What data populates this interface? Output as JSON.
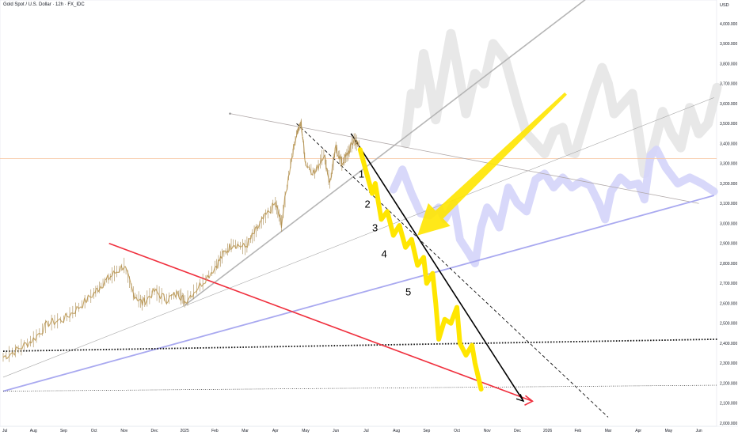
{
  "header": {
    "title": "Gold Spot / U.S. Dollar · 12h · FX_IDC",
    "currency": "USD"
  },
  "colors": {
    "candle": "#c7a768",
    "red_line": "#f0303e",
    "blue_line": "#a9a9f0",
    "gray_line": "#a6a6a6",
    "yellow": "#ffe600",
    "ghost_gray": "#e6e6e6",
    "ghost_blue": "#d4d4fa",
    "black": "#000000"
  },
  "chart_data": {
    "type": "line",
    "ylim": [
      2000,
      4100
    ],
    "y_ticks": [
      {
        "v": 2000,
        "label": "2,000.000"
      },
      {
        "v": 2100,
        "label": "2,100.000"
      },
      {
        "v": 2200,
        "label": "2,200.000"
      },
      {
        "v": 2300,
        "label": "2,300.000"
      },
      {
        "v": 2400,
        "label": "2,400.000"
      },
      {
        "v": 2500,
        "label": "2,500.000"
      },
      {
        "v": 2600,
        "label": "2,600.000"
      },
      {
        "v": 2700,
        "label": "2,700.000"
      },
      {
        "v": 2800,
        "label": "2,800.000"
      },
      {
        "v": 2900,
        "label": "2,900.000"
      },
      {
        "v": 3000,
        "label": "3,000.000"
      },
      {
        "v": 3100,
        "label": "3,100.000"
      },
      {
        "v": 3200,
        "label": "3,200.000"
      },
      {
        "v": 3300,
        "label": "3,300.000"
      },
      {
        "v": 3400,
        "label": "3,400.000"
      },
      {
        "v": 3500,
        "label": "3,500.000"
      },
      {
        "v": 3600,
        "label": "3,600.000"
      },
      {
        "v": 3700,
        "label": "3,700.000"
      },
      {
        "v": 3800,
        "label": "3,800.000"
      },
      {
        "v": 3900,
        "label": "3,900.000"
      },
      {
        "v": 4000,
        "label": "4,000.000"
      }
    ],
    "x_ticks": [
      {
        "m": 0,
        "label": "Jul"
      },
      {
        "m": 1,
        "label": "Aug"
      },
      {
        "m": 2,
        "label": "Sep"
      },
      {
        "m": 3,
        "label": "Oct"
      },
      {
        "m": 4,
        "label": "Nov"
      },
      {
        "m": 5,
        "label": "Dec"
      },
      {
        "m": 6,
        "label": "2025"
      },
      {
        "m": 7,
        "label": "Feb"
      },
      {
        "m": 8,
        "label": "Mar"
      },
      {
        "m": 9,
        "label": "Apr"
      },
      {
        "m": 10,
        "label": "May"
      },
      {
        "m": 11,
        "label": "Jun"
      },
      {
        "m": 12,
        "label": "Jul"
      },
      {
        "m": 13,
        "label": "Aug"
      },
      {
        "m": 14,
        "label": "Sep"
      },
      {
        "m": 15,
        "label": "Oct"
      },
      {
        "m": 16,
        "label": "Nov"
      },
      {
        "m": 17,
        "label": "Dec"
      },
      {
        "m": 18,
        "label": "2026"
      },
      {
        "m": 19,
        "label": "Feb"
      },
      {
        "m": 20,
        "label": "Mar"
      },
      {
        "m": 21,
        "label": "Apr"
      },
      {
        "m": 22,
        "label": "May"
      },
      {
        "m": 23,
        "label": "Jun"
      }
    ],
    "price_path": [
      [
        0,
        2330
      ],
      [
        0.5,
        2370
      ],
      [
        1,
        2420
      ],
      [
        1.5,
        2500
      ],
      [
        2,
        2520
      ],
      [
        2.5,
        2580
      ],
      [
        3,
        2650
      ],
      [
        3.3,
        2700
      ],
      [
        3.6,
        2740
      ],
      [
        4,
        2790
      ],
      [
        4.3,
        2650
      ],
      [
        4.6,
        2600
      ],
      [
        5,
        2660
      ],
      [
        5.4,
        2620
      ],
      [
        5.8,
        2650
      ],
      [
        6,
        2610
      ],
      [
        6.5,
        2690
      ],
      [
        7,
        2780
      ],
      [
        7.3,
        2850
      ],
      [
        7.6,
        2900
      ],
      [
        8,
        2880
      ],
      [
        8.3,
        2950
      ],
      [
        8.6,
        3020
      ],
      [
        9,
        3100
      ],
      [
        9.2,
        3000
      ],
      [
        9.5,
        3300
      ],
      [
        9.7,
        3450
      ],
      [
        9.85,
        3500
      ],
      [
        10,
        3300
      ],
      [
        10.3,
        3250
      ],
      [
        10.6,
        3350
      ],
      [
        10.8,
        3200
      ],
      [
        11,
        3380
      ],
      [
        11.2,
        3300
      ],
      [
        11.4,
        3350
      ],
      [
        11.6,
        3420
      ],
      [
        11.8,
        3380
      ]
    ],
    "projection_yellow": [
      [
        11.8,
        3370
      ],
      [
        12,
        3260
      ],
      [
        12.2,
        3150
      ],
      [
        12.3,
        3200
      ],
      [
        12.5,
        3020
      ],
      [
        12.7,
        3060
      ],
      [
        12.9,
        2940
      ],
      [
        13.1,
        2990
      ],
      [
        13.3,
        2880
      ],
      [
        13.5,
        2920
      ],
      [
        13.7,
        2790
      ],
      [
        13.9,
        2830
      ],
      [
        14,
        2700
      ],
      [
        14.2,
        2750
      ],
      [
        14.3,
        2600
      ],
      [
        14.4,
        2420
      ],
      [
        14.6,
        2520
      ],
      [
        14.8,
        2500
      ],
      [
        15,
        2580
      ],
      [
        15.1,
        2400
      ],
      [
        15.3,
        2340
      ],
      [
        15.5,
        2390
      ],
      [
        15.6,
        2300
      ],
      [
        15.8,
        2170
      ]
    ],
    "ghost_gray": [
      [
        13.3,
        3400
      ],
      [
        13.5,
        3650
      ],
      [
        13.7,
        3600
      ],
      [
        13.9,
        3850
      ],
      [
        14.1,
        3700
      ],
      [
        14.3,
        3520
      ],
      [
        14.5,
        3700
      ],
      [
        14.8,
        3950
      ],
      [
        15,
        3800
      ],
      [
        15.3,
        3550
      ],
      [
        15.6,
        3750
      ],
      [
        15.9,
        3700
      ],
      [
        16.2,
        3900
      ],
      [
        16.6,
        3820
      ],
      [
        17,
        3600
      ],
      [
        17.3,
        3450
      ],
      [
        17.6,
        3400
      ],
      [
        17.9,
        3350
      ],
      [
        18.2,
        3460
      ],
      [
        18.5,
        3480
      ],
      [
        18.7,
        3360
      ],
      [
        18.9,
        3350
      ],
      [
        19.2,
        3500
      ],
      [
        19.5,
        3650
      ],
      [
        19.8,
        3780
      ],
      [
        20,
        3700
      ],
      [
        20.2,
        3550
      ],
      [
        20.5,
        3600
      ],
      [
        20.8,
        3650
      ],
      [
        21,
        3460
      ],
      [
        21.2,
        3250
      ],
      [
        21.5,
        3380
      ],
      [
        21.8,
        3560
      ],
      [
        22.1,
        3450
      ],
      [
        22.4,
        3380
      ],
      [
        22.7,
        3580
      ],
      [
        23,
        3450
      ],
      [
        23.3,
        3500
      ],
      [
        23.6,
        3680
      ]
    ],
    "ghost_blue": [
      [
        12.9,
        3170
      ],
      [
        13.2,
        3270
      ],
      [
        13.5,
        3150
      ],
      [
        13.8,
        3050
      ],
      [
        14.1,
        3040
      ],
      [
        14.4,
        3080
      ],
      [
        14.6,
        3020
      ],
      [
        14.9,
        3100
      ],
      [
        15.1,
        2920
      ],
      [
        15.4,
        2850
      ],
      [
        15.6,
        2800
      ],
      [
        15.8,
        2980
      ],
      [
        16,
        3080
      ],
      [
        16.2,
        3040
      ],
      [
        16.4,
        2980
      ],
      [
        16.7,
        3180
      ],
      [
        17,
        3100
      ],
      [
        17.3,
        3060
      ],
      [
        17.6,
        3220
      ],
      [
        17.9,
        3250
      ],
      [
        18.2,
        3180
      ],
      [
        18.5,
        3230
      ],
      [
        18.8,
        3180
      ],
      [
        19.1,
        3210
      ],
      [
        19.4,
        3190
      ],
      [
        19.7,
        3100
      ],
      [
        19.9,
        3020
      ],
      [
        20.1,
        3160
      ],
      [
        20.4,
        3230
      ],
      [
        20.7,
        3190
      ],
      [
        21,
        3200
      ],
      [
        21.2,
        3120
      ],
      [
        21.4,
        3340
      ],
      [
        21.6,
        3370
      ],
      [
        21.9,
        3280
      ],
      [
        22.3,
        3200
      ],
      [
        22.7,
        3230
      ],
      [
        23.1,
        3200
      ],
      [
        23.5,
        3160
      ]
    ],
    "wave_labels": [
      {
        "label": "1",
        "m": 11.75,
        "v": 3230
      },
      {
        "label": "2",
        "m": 11.95,
        "v": 3080
      },
      {
        "label": "3",
        "m": 12.2,
        "v": 2960
      },
      {
        "label": "4",
        "m": 12.5,
        "v": 2830
      },
      {
        "label": "5",
        "m": 13.3,
        "v": 2640
      }
    ],
    "lines": {
      "red_trend": {
        "from": [
          3.5,
          2900
        ],
        "to": [
          17.5,
          2110
        ]
      },
      "blue_channel": {
        "from": [
          0,
          2160
        ],
        "to": [
          23.5,
          3140
        ]
      },
      "gray_thin_up": {
        "from": [
          0,
          2230
        ],
        "to": [
          23.5,
          3630
        ]
      },
      "gray_thick_up": {
        "from": [
          6,
          2590
        ],
        "to": [
          19.5,
          4150
        ]
      },
      "gray_top_line": {
        "from": [
          7.5,
          3550
        ],
        "to": [
          23,
          3100
        ]
      },
      "black_down": {
        "from": [
          11.5,
          3450
        ],
        "to": [
          17.2,
          2110
        ]
      },
      "dashed_down": {
        "from": [
          9.7,
          3500
        ],
        "to": [
          20,
          2030
        ]
      },
      "dotted_bold": {
        "from": [
          0,
          2360
        ],
        "to": [
          23.6,
          2420
        ]
      },
      "dotted_thin": {
        "from": [
          0,
          2160
        ],
        "to": [
          23.6,
          2190
        ]
      },
      "orange_level": {
        "v": 3325
      },
      "yellow_arrow_tail": [
        18.6,
        3650
      ],
      "yellow_arrow_head": [
        13.7,
        2940
      ]
    }
  }
}
